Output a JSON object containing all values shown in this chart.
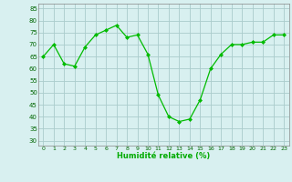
{
  "x": [
    0,
    1,
    2,
    3,
    4,
    5,
    6,
    7,
    8,
    9,
    10,
    11,
    12,
    13,
    14,
    15,
    16,
    17,
    18,
    19,
    20,
    21,
    22,
    23
  ],
  "y": [
    65,
    70,
    62,
    61,
    69,
    74,
    76,
    78,
    73,
    74,
    66,
    49,
    40,
    38,
    39,
    47,
    60,
    66,
    70,
    70,
    71,
    71,
    74,
    74
  ],
  "line_color": "#00bb00",
  "marker_color": "#00bb00",
  "bg_color": "#d8f0f0",
  "grid_color": "#aacccc",
  "xlabel": "Humidité relative (%)",
  "xlabel_color": "#00aa00",
  "ylim": [
    28,
    87
  ],
  "xlim": [
    -0.5,
    23.5
  ],
  "yticks": [
    30,
    35,
    40,
    45,
    50,
    55,
    60,
    65,
    70,
    75,
    80,
    85
  ],
  "xticks": [
    0,
    1,
    2,
    3,
    4,
    5,
    6,
    7,
    8,
    9,
    10,
    11,
    12,
    13,
    14,
    15,
    16,
    17,
    18,
    19,
    20,
    21,
    22,
    23
  ]
}
